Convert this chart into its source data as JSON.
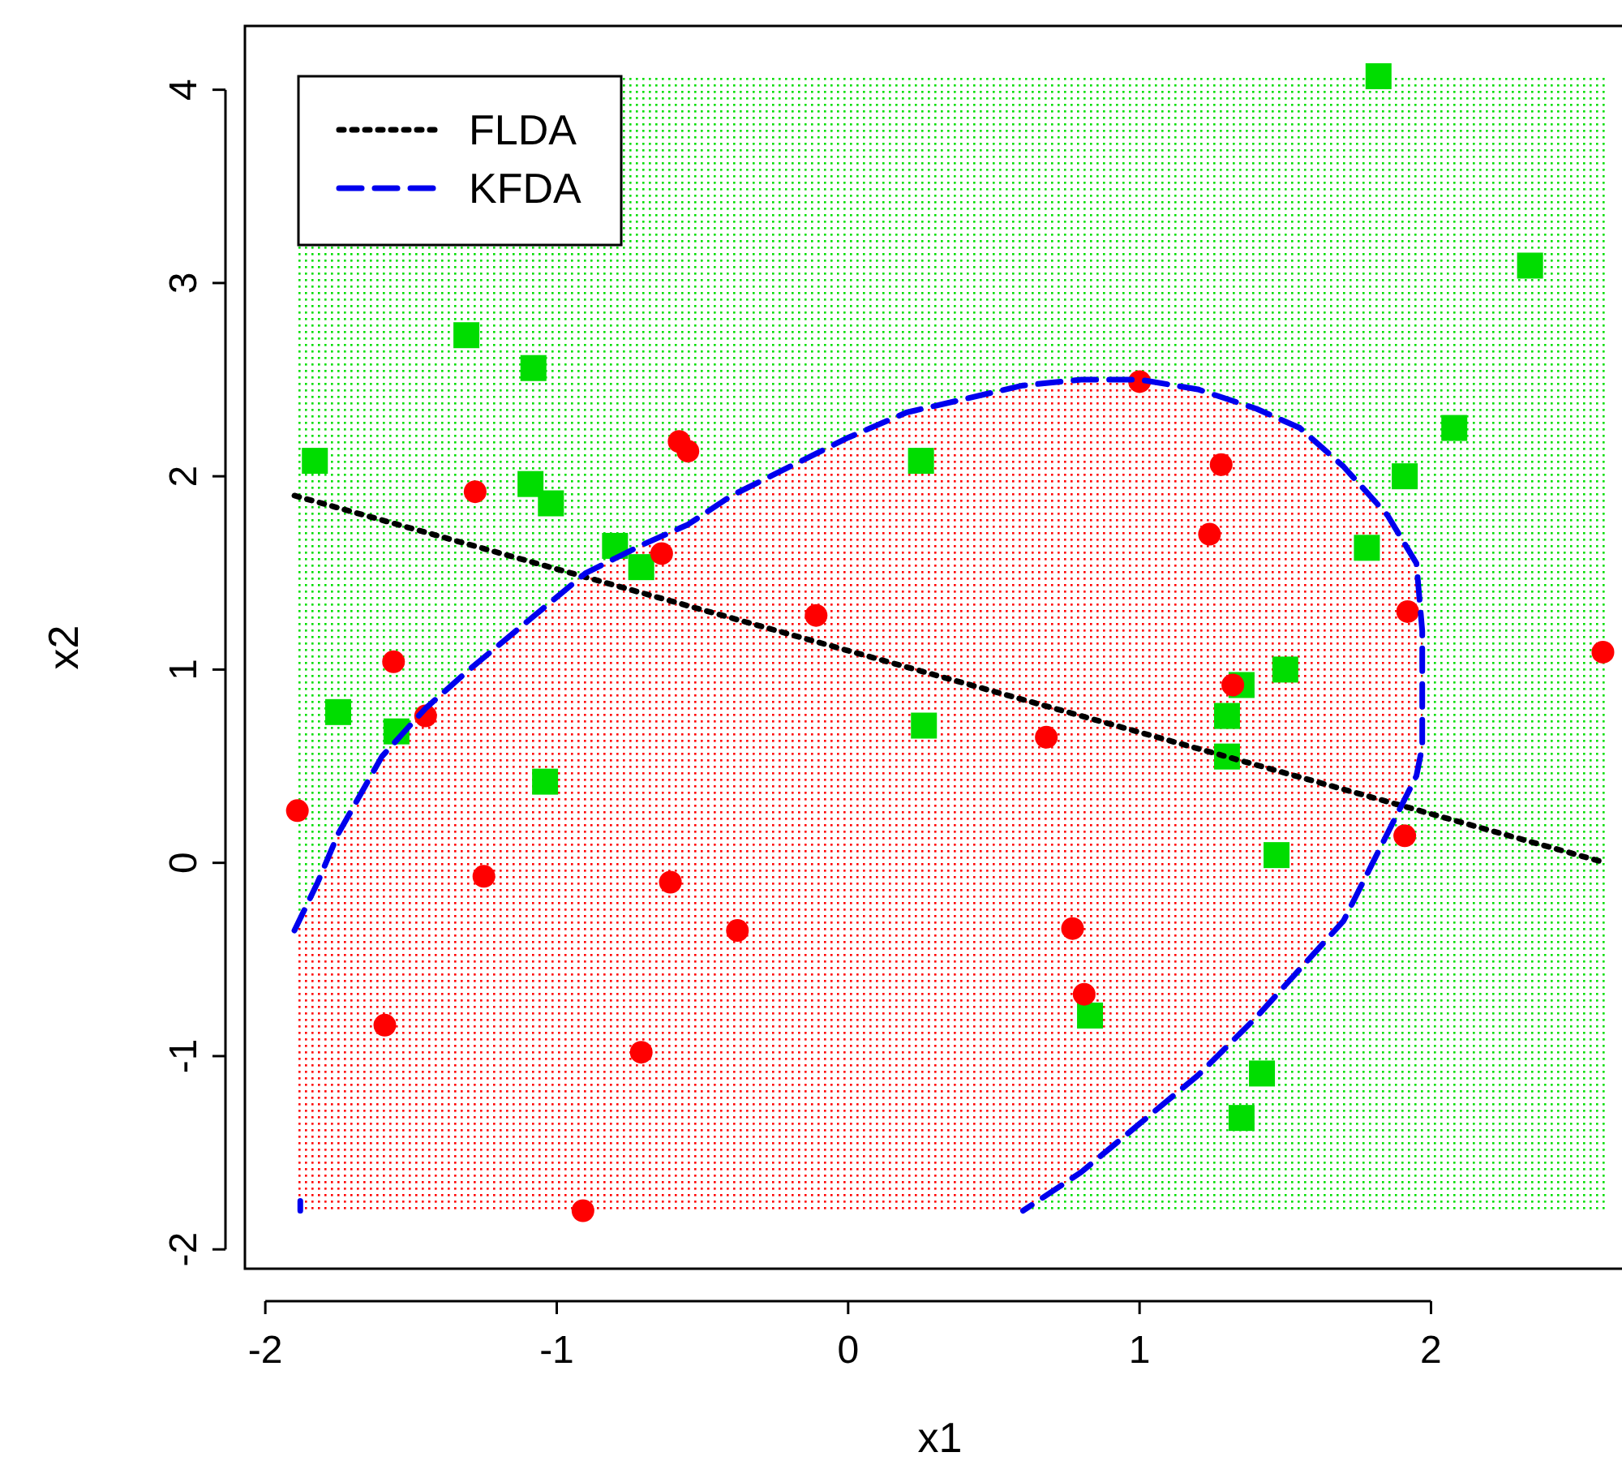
{
  "chart_data": {
    "type": "scatter",
    "xlabel": "x1",
    "ylabel": "x2",
    "xlim": [
      -2.07,
      2.7
    ],
    "ylim": [
      -2.1,
      4.33
    ],
    "xticks": [
      -2,
      -1,
      0,
      1,
      2
    ],
    "yticks": [
      -2,
      -1,
      0,
      1,
      2,
      3,
      4
    ],
    "grid": false,
    "legend": "top left",
    "series": [
      {
        "type": "scatter",
        "marker": "square",
        "color": "#00dd00",
        "x": [
          -1.83,
          -1.75,
          -1.55,
          -1.31,
          -1.08,
          -1.09,
          -1.02,
          -1.04,
          -0.8,
          -0.71,
          0.25,
          0.26,
          0.83,
          1.3,
          1.3,
          1.35,
          1.5,
          1.47,
          1.42,
          1.35,
          1.78,
          1.91,
          2.08,
          1.82,
          2.34
        ],
        "values": [
          2.08,
          0.78,
          0.68,
          2.73,
          2.56,
          1.96,
          1.86,
          0.42,
          1.64,
          1.53,
          2.08,
          0.71,
          -0.79,
          0.76,
          0.55,
          0.92,
          1.0,
          0.04,
          -1.09,
          -1.32,
          1.63,
          2.0,
          2.25,
          4.07,
          3.09
        ]
      },
      {
        "type": "scatter",
        "marker": "circle",
        "color": "#ff0000",
        "x": [
          -1.89,
          -1.56,
          -1.45,
          -1.28,
          -1.25,
          -1.59,
          -0.91,
          -0.71,
          -0.64,
          -0.61,
          -0.58,
          -0.55,
          -0.38,
          -0.11,
          0.68,
          0.77,
          0.81,
          0.99,
          1.0,
          1.24,
          1.28,
          1.32,
          1.92,
          1.91,
          2.59
        ],
        "values": [
          0.27,
          1.04,
          0.76,
          1.92,
          -0.07,
          -0.84,
          -1.8,
          -0.98,
          1.6,
          -0.1,
          2.18,
          2.13,
          -0.35,
          1.28,
          0.65,
          -0.34,
          -0.68,
          null,
          2.49,
          1.7,
          2.06,
          0.92,
          1.3,
          0.14,
          1.09
        ]
      },
      {
        "type": "line",
        "name": "FLDA",
        "color": "#000000",
        "line_style": "dotted",
        "x": [
          -1.9,
          2.6
        ],
        "values": [
          1.9,
          0.0
        ]
      },
      {
        "type": "line",
        "name": "KFDA",
        "color": "#0000ee",
        "line_style": "dashed",
        "x": [
          -1.88,
          -1.88,
          null,
          -1.9,
          -1.82,
          -1.75,
          -1.6,
          -1.45,
          -1.3,
          -1.1,
          -0.9,
          -0.7,
          -0.55,
          -0.4,
          -0.2,
          0,
          0.2,
          0.4,
          0.6,
          0.8,
          1.0,
          1.2,
          1.4,
          1.55,
          1.7,
          1.85,
          1.95,
          1.97,
          1.97,
          1.95,
          1.9,
          1.8,
          1.7,
          1.55,
          1.4,
          1.2,
          1.0,
          0.8,
          0.6
        ],
        "values": [
          -1.8,
          -1.75,
          null,
          -0.35,
          -0.1,
          0.15,
          0.55,
          0.8,
          1.0,
          1.25,
          1.5,
          1.65,
          1.75,
          1.9,
          2.05,
          2.2,
          2.33,
          2.4,
          2.47,
          2.5,
          2.5,
          2.45,
          2.35,
          2.25,
          2.05,
          1.8,
          1.55,
          1.2,
          0.6,
          0.45,
          0.3,
          0.0,
          -0.3,
          -0.55,
          -0.8,
          -1.1,
          -1.35,
          -1.6,
          -1.8
        ]
      }
    ]
  }
}
